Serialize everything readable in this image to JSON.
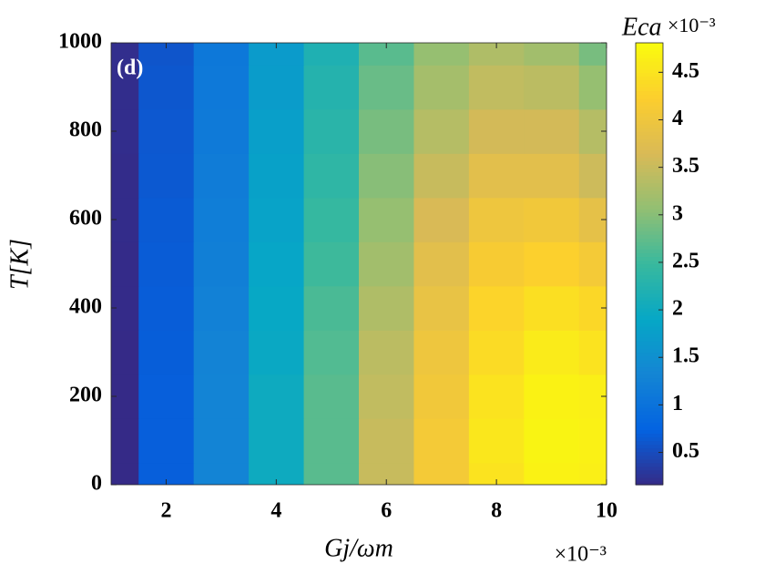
{
  "chart_data": {
    "type": "heatmap",
    "annotation": "(d)",
    "xlabel": "Gj/ωm",
    "ylabel": "T[K]",
    "x_multiplier": "×10⁻³",
    "colorbar_label": "Eca",
    "colorbar_multiplier": "×10⁻³",
    "x": [
      1,
      2,
      3,
      4,
      5,
      6,
      7,
      8,
      9,
      10
    ],
    "y": [
      0,
      100,
      200,
      300,
      400,
      500,
      600,
      700,
      800,
      900,
      1000
    ],
    "z": [
      [
        0.15,
        0.7,
        1.3,
        2.0,
        2.7,
        3.5,
        4.1,
        4.5,
        4.7,
        4.65
      ],
      [
        0.15,
        0.7,
        1.3,
        2.0,
        2.7,
        3.5,
        4.1,
        4.55,
        4.72,
        4.68
      ],
      [
        0.16,
        0.7,
        1.3,
        2.0,
        2.7,
        3.45,
        4.05,
        4.5,
        4.7,
        4.65
      ],
      [
        0.16,
        0.69,
        1.28,
        1.95,
        2.65,
        3.4,
        4.0,
        4.4,
        4.6,
        4.5
      ],
      [
        0.17,
        0.68,
        1.25,
        1.92,
        2.6,
        3.3,
        3.9,
        4.3,
        4.45,
        4.35
      ],
      [
        0.17,
        0.67,
        1.22,
        1.88,
        2.52,
        3.2,
        3.8,
        4.15,
        4.25,
        4.1
      ],
      [
        0.18,
        0.66,
        1.2,
        1.84,
        2.45,
        3.1,
        3.65,
        4.0,
        4.05,
        3.85
      ],
      [
        0.18,
        0.64,
        1.17,
        1.8,
        2.38,
        3.0,
        3.5,
        3.8,
        3.8,
        3.55
      ],
      [
        0.19,
        0.63,
        1.14,
        1.76,
        2.32,
        2.9,
        3.35,
        3.6,
        3.6,
        3.35
      ],
      [
        0.19,
        0.62,
        1.12,
        1.72,
        2.26,
        2.8,
        3.22,
        3.45,
        3.4,
        3.1
      ],
      [
        0.2,
        0.6,
        1.1,
        1.7,
        2.2,
        2.7,
        3.1,
        3.3,
        3.2,
        2.9
      ]
    ],
    "xlim": [
      1,
      10
    ],
    "xticks": [
      2,
      4,
      6,
      8,
      10
    ],
    "ylim": [
      0,
      1000
    ],
    "yticks": [
      0,
      200,
      400,
      600,
      800,
      1000
    ],
    "clim": [
      0.16,
      4.81
    ],
    "cticks": [
      0.5,
      1,
      1.5,
      2,
      2.5,
      3,
      3.5,
      4,
      4.5
    ],
    "colormap": [
      "#352a87",
      "#0363e1",
      "#1485d4",
      "#06a7c6",
      "#38b99e",
      "#92bf73",
      "#d9ba56",
      "#fcce2e",
      "#f9fb0e"
    ]
  }
}
